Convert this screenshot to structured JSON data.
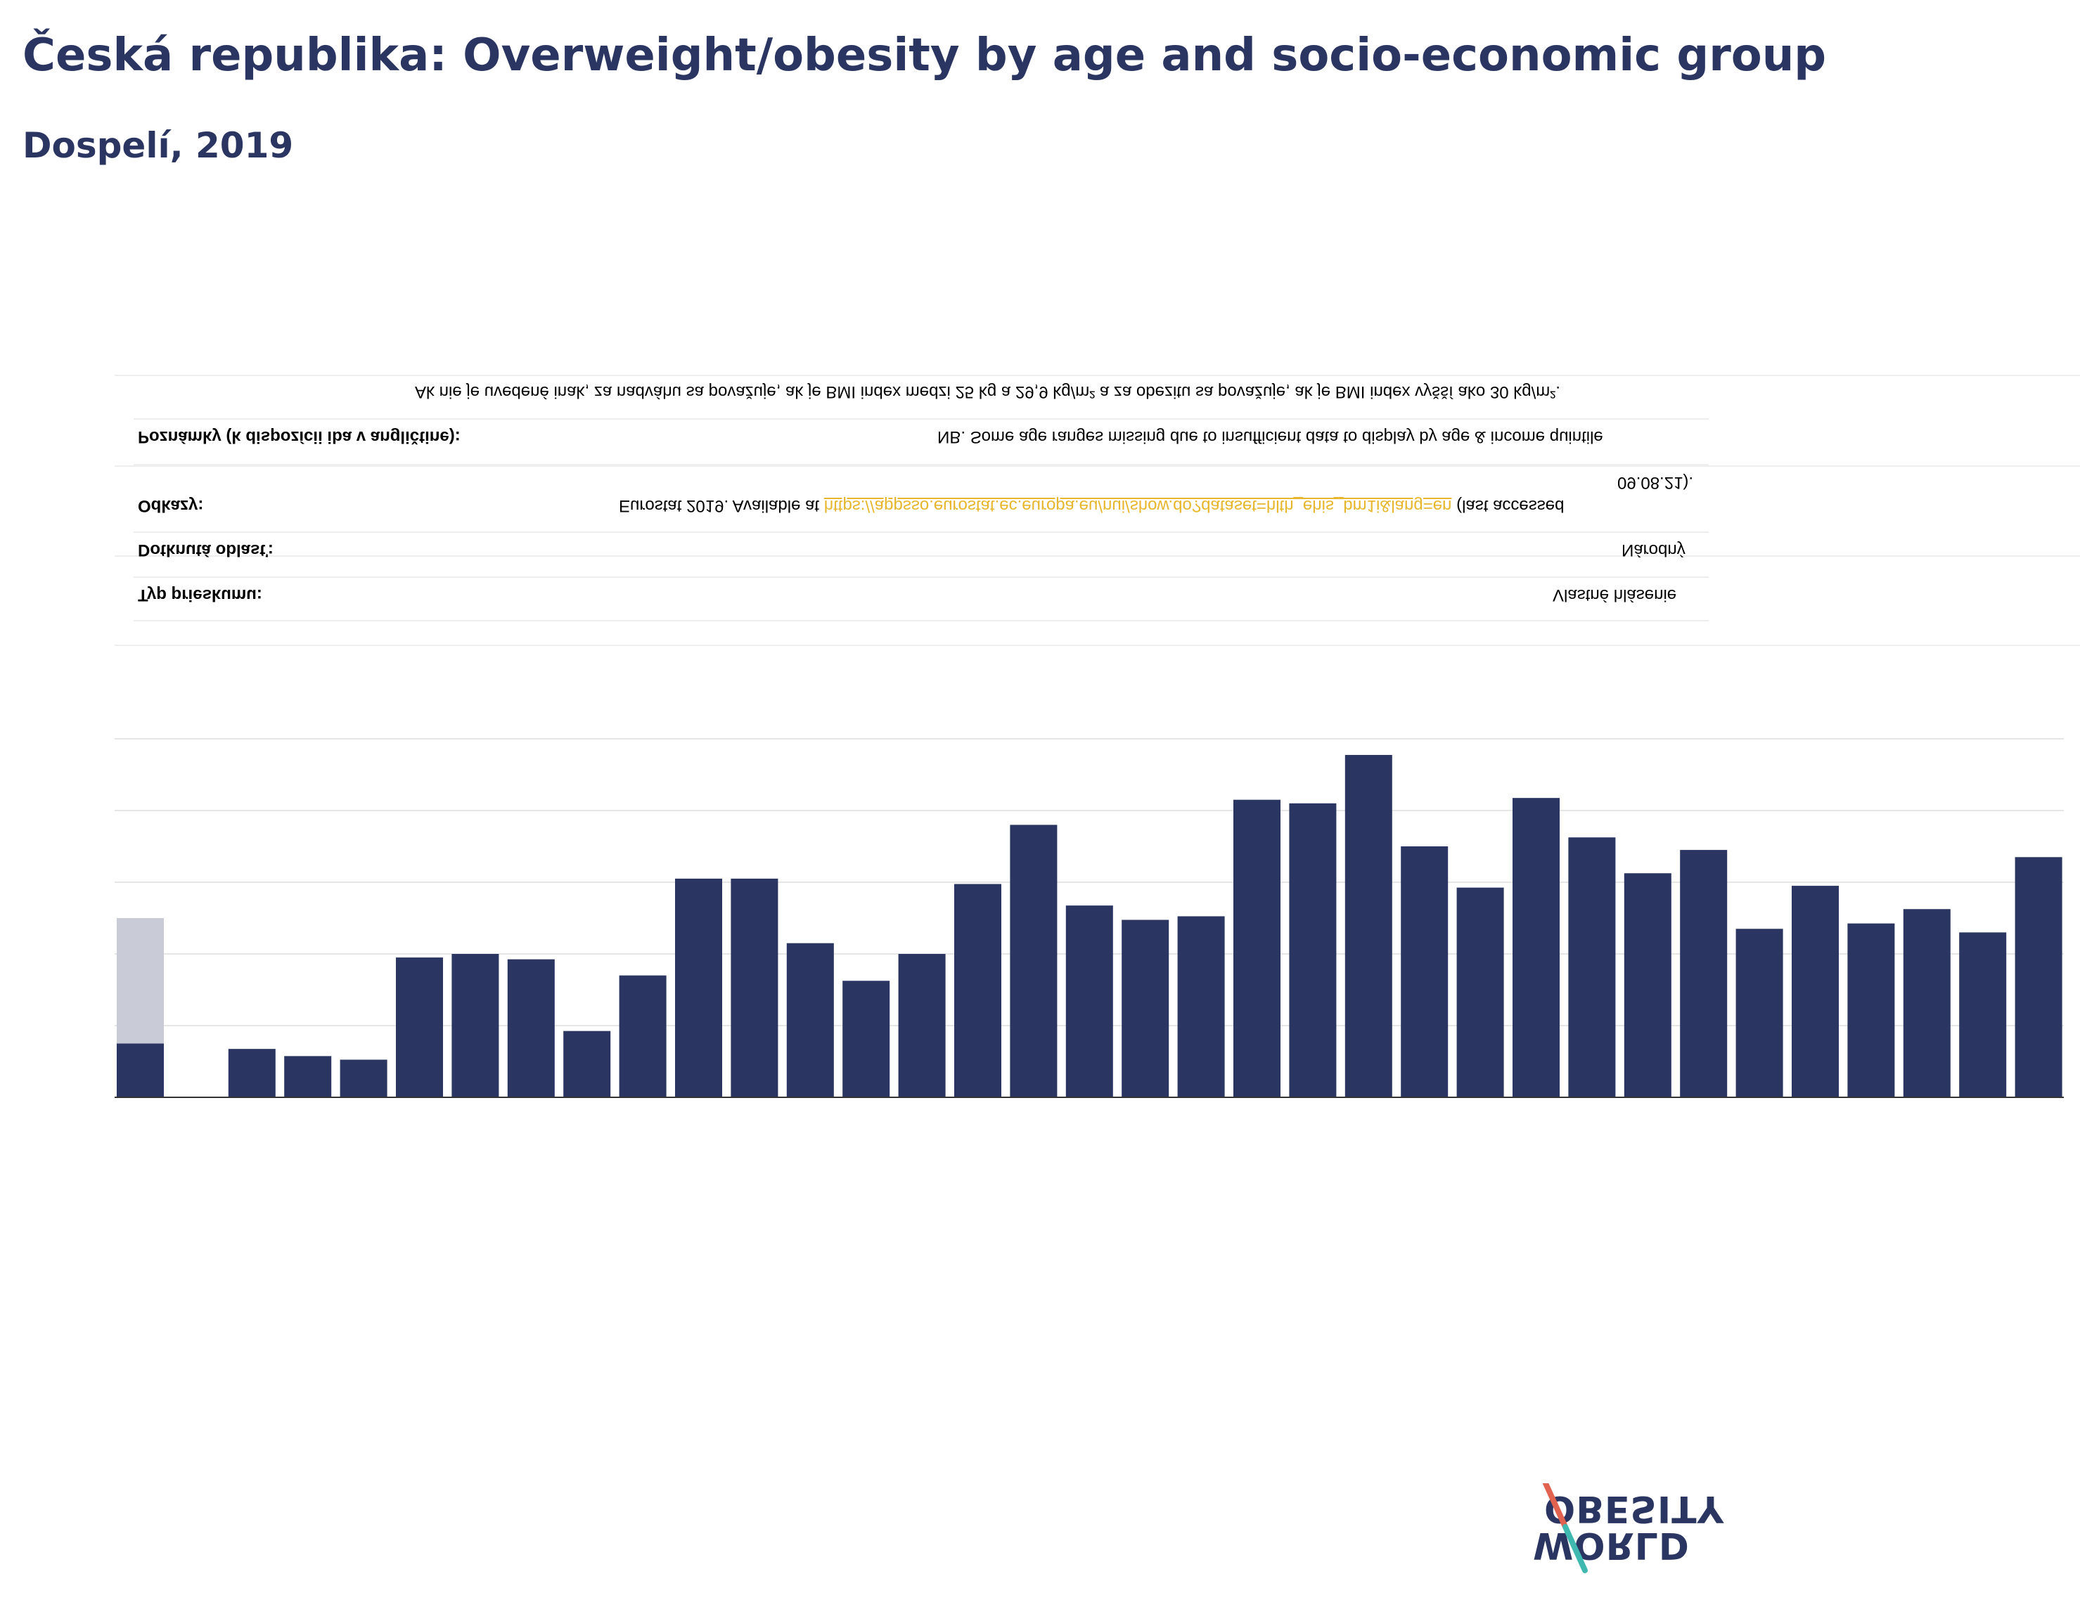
{
  "header": {
    "title": "Česká republika: Overweight/obesity by age and socio-economic group",
    "subtitle": "Dospelí, 2019"
  },
  "metadata": {
    "survey_type_label": "Typ prieskumu:",
    "survey_type_value": "Vlastné hlásenie",
    "area_label": "Dotknutá oblasť:",
    "area_value": "Národný",
    "refs_label": "Odkazy:",
    "refs_value_prefix": "Eurostat 2019. Available at",
    "refs_link": "https://appsso.eurostat.ec.europa.eu/nui/show.do?dataset=hlth_ehis_bm1i&lang=en",
    "refs_value_suffix": "(last accessed",
    "refs_value_line2": "09.08.21).",
    "notes_label": "Poznámky (k dispozícii iba v angličtine):",
    "notes_value": "NB. Some age ranges missing due to insufficient data to display by age & income quintile",
    "definition": "Ak nie je uvedené inak, za nadváhu sa považuje, ak je BMI index medzi 25 kg a 29,9 kg/m² a za obezitu sa považuje, ak je BMI index vyšší ako 30 kg/m²."
  },
  "colors": {
    "bar": "#2a3562",
    "bar_light": "#c9cbd6",
    "grid": "#e6e6e6",
    "axis": "#333333",
    "accent_link": "#e8b62c",
    "logo_red": "#e0624f",
    "logo_teal": "#3fb8b0"
  },
  "logo": {
    "line1": "OBESITY",
    "line2": "WORLD"
  },
  "chart_data": {
    "type": "bar",
    "ylim": [
      0,
      100
    ],
    "grid": true,
    "series": [
      {
        "values": [
          15,
          null,
          13.5,
          11.5,
          10.5,
          39,
          40,
          38.5,
          18.5,
          34,
          61,
          61,
          43,
          32.5,
          40,
          59.5,
          76,
          53.5,
          49.5,
          50.5,
          83,
          82,
          95.5,
          70,
          58.5,
          83.5,
          72.5,
          62.5,
          69,
          47,
          59,
          48.5,
          52.5,
          46,
          67
        ]
      },
      {
        "values": [
          50
        ]
      }
    ]
  }
}
